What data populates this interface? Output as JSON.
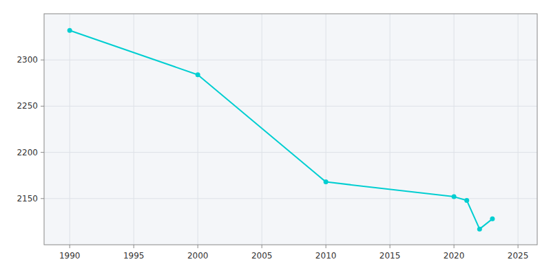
{
  "chart_data": {
    "type": "line",
    "x": [
      1990,
      2000,
      2010,
      2020,
      2021,
      2022,
      2023
    ],
    "values": [
      2332,
      2284,
      2168,
      2152,
      2148,
      2117,
      2128
    ],
    "color": "#00CED1",
    "marker": "circle",
    "xlim": [
      1988,
      2026.5
    ],
    "ylim": [
      2100,
      2350
    ],
    "xticks": [
      1990,
      1995,
      2000,
      2005,
      2010,
      2015,
      2020,
      2025
    ],
    "yticks": [
      2150,
      2200,
      2250,
      2300
    ],
    "grid": true
  }
}
